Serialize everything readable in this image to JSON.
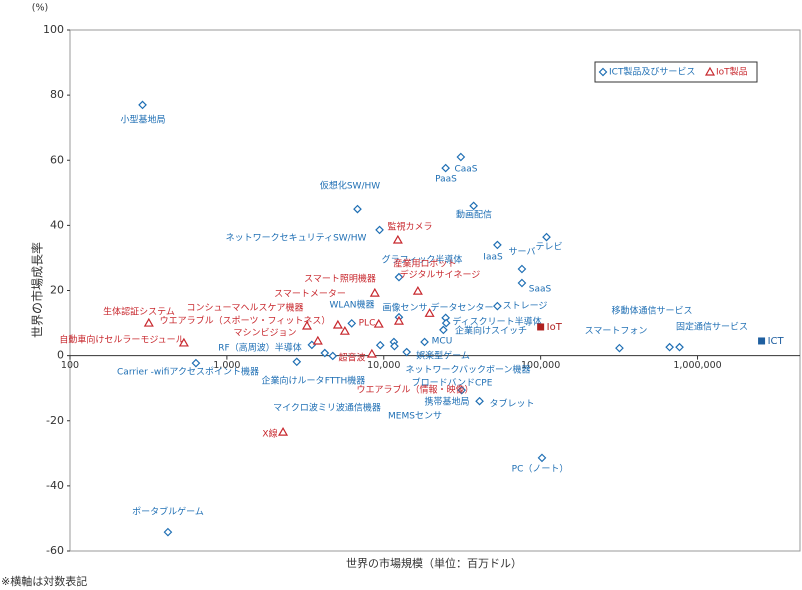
{
  "chart_data": {
    "type": "scatter",
    "y_unit": "(%)",
    "x_label": "世界の市場規模（単位：百万ドル）",
    "y_label": "世界の市場成長率",
    "footnote": "※横軸は対数表記",
    "x_log": true,
    "xlim": [
      100,
      4500000
    ],
    "ylim": [
      -60,
      100
    ],
    "xticks": [
      100,
      {
        "value": 1000,
        "label": "1,000"
      },
      {
        "value": 10000,
        "label": "10,000"
      },
      {
        "value": 100000,
        "label": "100,000"
      },
      {
        "value": 1000000,
        "label": "1,000,000"
      }
    ],
    "yticks": [
      -60,
      -40,
      -20,
      0,
      20,
      40,
      60,
      80,
      100
    ],
    "legend_position": "upper right",
    "series": [
      {
        "name": "ICT製品及びサービス",
        "color": "#1f6fb4",
        "marker": "diamond",
        "labels": [
          "小型基地局",
          "仮想化SW/HW",
          "ネットワークセキュリティSW/HW",
          "CaaS",
          "PaaS",
          "動画配信",
          "IaaS",
          "テレビ",
          "サーバ",
          "SaaS",
          "ストレージ",
          "グラフィック半導体",
          "データセンター",
          "画像センサ",
          "WLAN機器",
          "ディスクリート半導体",
          "企業向けスイッチ",
          "MCU",
          "娯楽型ゲーム",
          "ネットワークバックボーン機器",
          "ブロードバンドCPE",
          "携帯基地局",
          "タブレット",
          "PC（ノート）",
          "スマートフォン",
          "移動体通信サービス",
          "固定通信サービス",
          "Carrier -wifiアクセスポイント機器",
          "RF（高周波）半導体",
          "企業向けルータ",
          "FTTH機器",
          "マイクロ波ミリ波通信機器",
          "MEMSセンサ",
          "ポータブルゲーム"
        ],
        "x": [
          290,
          6800,
          9400,
          31000,
          24800,
          37400,
          53000,
          109000,
          76000,
          76000,
          53000,
          12500,
          24800,
          12500,
          6250,
          25000,
          24000,
          18200,
          14000,
          11600,
          9500,
          31400,
          40800,
          102000,
          318000,
          664000,
          768000,
          635,
          3480,
          2790,
          4730,
          4210,
          11700,
          421
        ],
        "values": [
          77,
          45,
          38.6,
          61,
          57.6,
          46,
          34,
          36.4,
          26.6,
          22.3,
          15.2,
          24.1,
          11.6,
          11.8,
          9.9,
          10,
          7.9,
          4.2,
          1.1,
          4.2,
          3.2,
          -10.6,
          -14,
          -31.4,
          2.3,
          2.6,
          2.6,
          -2.3,
          3.3,
          -1.9,
          -0.1,
          0.8,
          2.9,
          -54.2
        ]
      },
      {
        "name": "IoT製品",
        "color": "#c8282e",
        "marker": "triangle",
        "labels": [
          "監視カメラ",
          "スマート照明機器",
          "産業用ロボット",
          "デジタルサイネージ",
          "生体認証システム",
          "自動車向けセルラーモジュール",
          "スマートメーター",
          "コンシューマヘルスケア機器",
          "ウエアラブル（スポーツ・フィットネス）",
          "PLC",
          "マシンビジョン",
          "超音波",
          "ウエアラブル（情報・映像）",
          "X線"
        ],
        "x": [
          12300,
          8770,
          16500,
          19600,
          318,
          532,
          5100,
          3240,
          5650,
          9290,
          3800,
          8400,
          12500,
          2280
        ],
        "values": [
          35.5,
          19.2,
          19.8,
          13,
          10,
          3.9,
          9.4,
          9.1,
          7.5,
          9.7,
          4.5,
          0.5,
          10.6,
          -23.5
        ]
      }
    ],
    "totals": [
      {
        "label": "ICT",
        "x": 2560000,
        "y": 4.5,
        "color": "#1f5fa0"
      },
      {
        "label": "IoT",
        "x": 100000,
        "y": 8.8,
        "color": "#b0201f"
      }
    ]
  }
}
